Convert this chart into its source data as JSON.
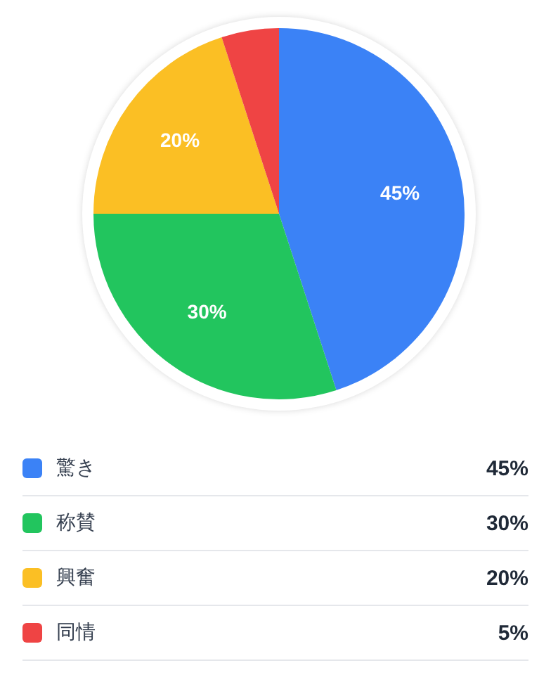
{
  "chart_data": {
    "type": "pie",
    "categories": [
      "驚き",
      "称賛",
      "興奮",
      "同情"
    ],
    "values": [
      45,
      30,
      20,
      5
    ],
    "colors": [
      "#3b82f6",
      "#22c55e",
      "#fbbf24",
      "#ef4444"
    ],
    "value_labels": [
      "45%",
      "30%",
      "20%",
      "5%"
    ],
    "legend": "bottom"
  }
}
